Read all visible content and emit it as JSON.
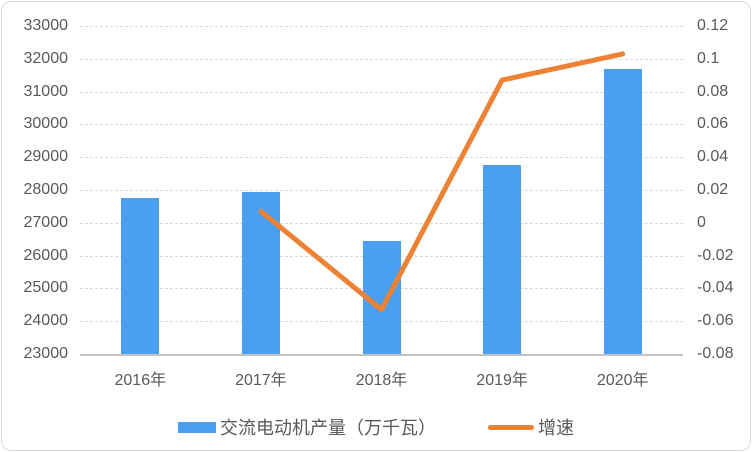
{
  "chart_data": {
    "type": "bar",
    "categories": [
      "2016年",
      "2017年",
      "2018年",
      "2019年",
      "2020年"
    ],
    "series": [
      {
        "name": "交流电动机产量（万千瓦）",
        "type": "bar",
        "axis": "left",
        "values": [
          27750,
          27950,
          26450,
          28750,
          31700
        ],
        "color": "#4A9FF2"
      },
      {
        "name": "增速",
        "type": "line",
        "axis": "right",
        "values": [
          null,
          0.007,
          -0.053,
          0.087,
          0.103
        ],
        "color": "#ED8134"
      }
    ],
    "title": "",
    "xlabel": "",
    "ylabel": "",
    "left_axis": {
      "min": 23000,
      "max": 33000,
      "step": 1000,
      "ticks": [
        "33000",
        "32000",
        "31000",
        "30000",
        "29000",
        "28000",
        "27000",
        "26000",
        "25000",
        "24000",
        "23000"
      ]
    },
    "right_axis": {
      "min": -0.08,
      "max": 0.12,
      "step": 0.02,
      "ticks": [
        "0.12",
        "0.1",
        "0.08",
        "0.06",
        "0.04",
        "0.02",
        "0",
        "-0.02",
        "-0.04",
        "-0.06",
        "-0.08"
      ]
    },
    "grid": true,
    "legend_position": "bottom"
  },
  "legend": {
    "production_label": "交流电动机产量（万千瓦）",
    "growth_label": "增速"
  },
  "colors": {
    "bar": "#4A9FF2",
    "line": "#ED8134",
    "gridline": "#DADADA",
    "axis_line": "#C3C3C3",
    "text": "#595959"
  }
}
